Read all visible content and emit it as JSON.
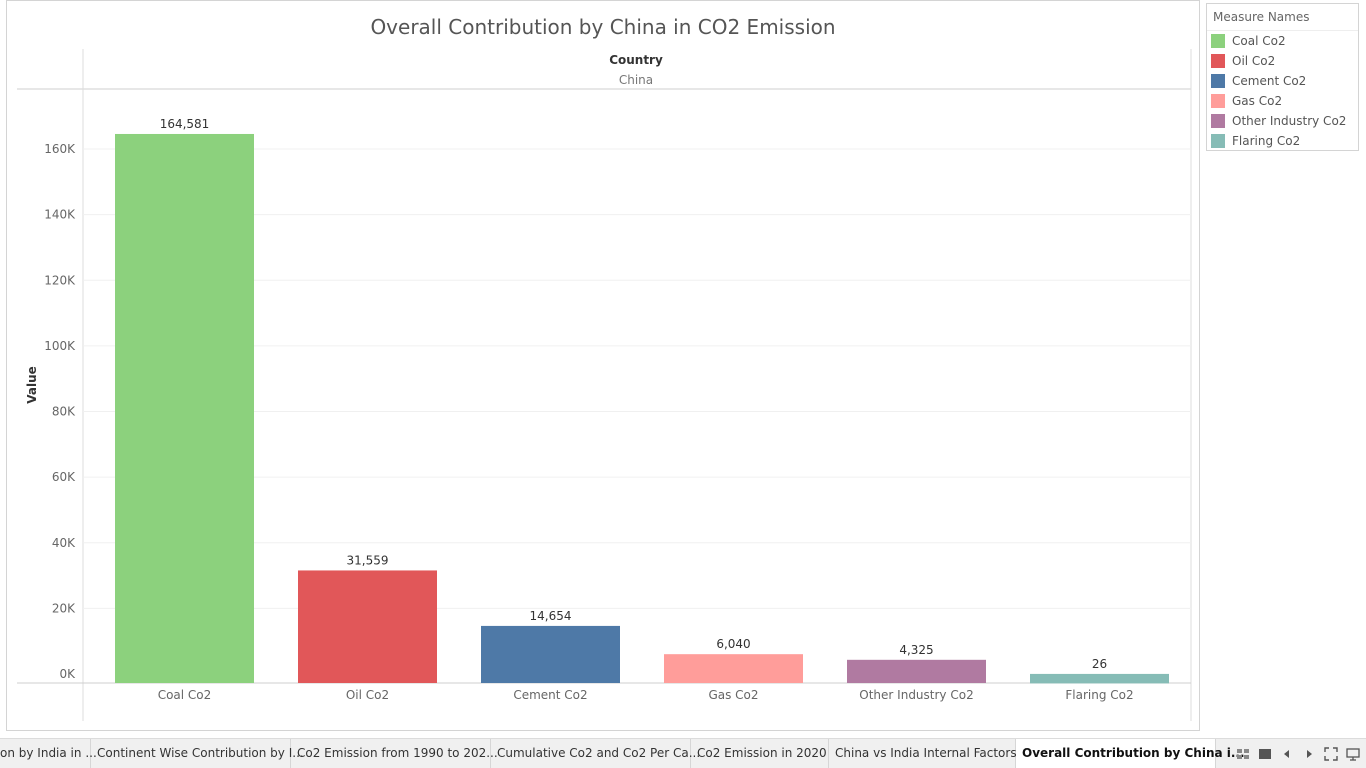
{
  "chart_data": {
    "type": "bar",
    "title": "Overall Contribution by China in CO2 Emission",
    "column_header": "Country",
    "column_value": "China",
    "ylabel": "Value",
    "xlabel": "",
    "categories": [
      "Coal Co2",
      "Oil Co2",
      "Cement Co2",
      "Gas Co2",
      "Other Industry Co2",
      "Flaring Co2"
    ],
    "values": [
      164581,
      31559,
      14654,
      6040,
      4325,
      26
    ],
    "value_labels": [
      "164,581",
      "31,559",
      "14,654",
      "6,040",
      "4,325",
      "26"
    ],
    "colors": [
      "#8cd17d",
      "#e15759",
      "#4e79a7",
      "#ff9d9a",
      "#b07aa1",
      "#86bcb6"
    ],
    "ylim": [
      0,
      176000
    ],
    "yticks": [
      0,
      20000,
      40000,
      60000,
      80000,
      100000,
      120000,
      140000,
      160000
    ],
    "ytick_labels": [
      "0K",
      "20K",
      "40K",
      "60K",
      "80K",
      "100K",
      "120K",
      "140K",
      "160K"
    ],
    "grid": true,
    "legend_position": "top-right"
  },
  "legend": {
    "title": "Measure Names",
    "items": [
      {
        "label": "Coal Co2",
        "color": "#8cd17d"
      },
      {
        "label": "Oil Co2",
        "color": "#e15759"
      },
      {
        "label": "Cement Co2",
        "color": "#4e79a7"
      },
      {
        "label": "Gas Co2",
        "color": "#ff9d9a"
      },
      {
        "label": "Other Industry Co2",
        "color": "#b07aa1"
      },
      {
        "label": "Flaring Co2",
        "color": "#86bcb6"
      }
    ]
  },
  "tabs": [
    {
      "label": "on by India in ..."
    },
    {
      "label": "Continent Wise Contribution by I..."
    },
    {
      "label": "Co2 Emission from 1990 to 202..."
    },
    {
      "label": "Cumulative Co2 and Co2 Per Ca..."
    },
    {
      "label": "Co2 Emission in 2020"
    },
    {
      "label": "China vs India Internal Factors"
    },
    {
      "label": "Overall Contribution by China i..."
    }
  ],
  "toolbar_icons": [
    "show-sheet-sorter-icon",
    "show-filmstrip-icon",
    "previous-sheet-icon",
    "next-sheet-icon",
    "fit-screen-icon",
    "presentation-mode-icon"
  ]
}
